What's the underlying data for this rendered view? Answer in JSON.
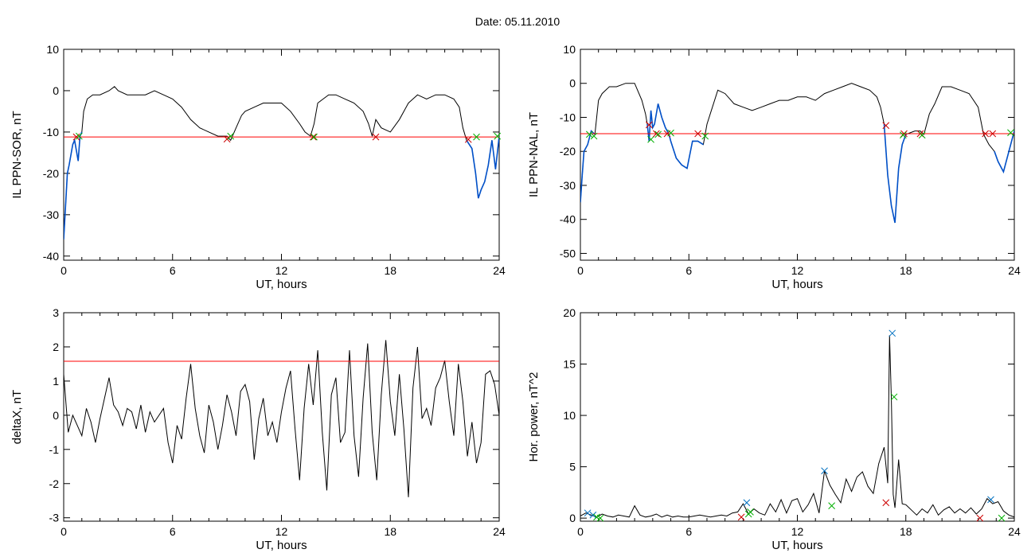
{
  "figure": {
    "title": "Date:  05.11.2010"
  },
  "colors": {
    "line": "#000000",
    "threshold": "#ff0000",
    "highlight": "#0050c8",
    "marker_red": "#cc0000",
    "marker_green": "#00b000",
    "marker_blue": "#0070c0"
  },
  "chart_data": [
    {
      "id": "sor",
      "type": "line",
      "xlabel": "UT, hours",
      "ylabel": "IL PPN-SOR, nT",
      "xlim": [
        0,
        24
      ],
      "ylim": [
        -41,
        10
      ],
      "xticks": [
        0,
        6,
        12,
        18,
        24
      ],
      "yticks": [
        -40,
        -30,
        -20,
        -10,
        0,
        10
      ],
      "threshold": -11.2,
      "series": {
        "x": [
          0,
          0.1,
          0.2,
          0.3,
          0.5,
          0.6,
          0.8,
          0.9,
          1.0,
          1.1,
          1.3,
          1.6,
          2.0,
          2.5,
          2.8,
          3.0,
          3.5,
          4.0,
          4.5,
          5.0,
          5.5,
          6.0,
          6.5,
          7.0,
          7.5,
          8.0,
          8.5,
          9.0,
          9.2,
          9.5,
          9.8,
          10.0,
          10.5,
          11.0,
          11.5,
          12.0,
          12.5,
          13.0,
          13.3,
          13.6,
          13.8,
          14.0,
          14.3,
          14.6,
          15.0,
          15.5,
          16.0,
          16.5,
          16.8,
          17.0,
          17.2,
          17.5,
          18.0,
          18.5,
          19.0,
          19.5,
          20.0,
          20.5,
          21.0,
          21.5,
          21.8,
          22.0,
          22.2,
          22.5,
          22.7,
          22.85,
          23.0,
          23.2,
          23.4,
          23.6,
          23.8,
          24.0
        ],
        "y": [
          -36,
          -28,
          -20,
          -18,
          -13,
          -12,
          -17,
          -11,
          -10,
          -5,
          -2,
          -1,
          -1,
          0,
          1,
          0,
          -1,
          -1,
          -1,
          0,
          -1,
          -2,
          -4,
          -7,
          -9,
          -10,
          -11,
          -11,
          -12,
          -9,
          -6,
          -5,
          -4,
          -3,
          -3,
          -3,
          -5,
          -8,
          -10,
          -11,
          -8,
          -3,
          -2,
          -1,
          -1,
          -2,
          -3,
          -5,
          -8,
          -11,
          -7,
          -9,
          -10,
          -7,
          -3,
          -1,
          -2,
          -1,
          -1,
          -2,
          -4,
          -9,
          -12,
          -14,
          -20,
          -26,
          -24,
          -22,
          -18,
          -12,
          -19,
          -11
        ],
        "highlight_ranges": [
          [
            0,
            1.0
          ],
          [
            22.2,
            24
          ]
        ]
      },
      "markers": [
        {
          "x": 0.7,
          "y": -11.2,
          "color": "red"
        },
        {
          "x": 0.85,
          "y": -11,
          "color": "green"
        },
        {
          "x": 9.0,
          "y": -11.7,
          "color": "red"
        },
        {
          "x": 9.2,
          "y": -11,
          "color": "green"
        },
        {
          "x": 13.75,
          "y": -11.2,
          "color": "red"
        },
        {
          "x": 13.8,
          "y": -11.2,
          "color": "green"
        },
        {
          "x": 17.2,
          "y": -11.2,
          "color": "red"
        },
        {
          "x": 22.3,
          "y": -11.8,
          "color": "red"
        },
        {
          "x": 22.75,
          "y": -11.2,
          "color": "green"
        },
        {
          "x": 23.9,
          "y": -11,
          "color": "green"
        }
      ]
    },
    {
      "id": "nal",
      "type": "line",
      "xlabel": "UT, hours",
      "ylabel": "IL PPN-NAL, nT",
      "xlim": [
        0,
        24
      ],
      "ylim": [
        -52,
        10
      ],
      "xticks": [
        0,
        6,
        12,
        18,
        24
      ],
      "yticks": [
        -50,
        -40,
        -30,
        -20,
        -10,
        0,
        10
      ],
      "threshold": -14.8,
      "series": {
        "x": [
          0,
          0.1,
          0.2,
          0.4,
          0.6,
          0.8,
          1.0,
          1.2,
          1.6,
          2.0,
          2.5,
          3.0,
          3.4,
          3.6,
          3.7,
          3.8,
          3.9,
          4.0,
          4.1,
          4.3,
          4.5,
          4.7,
          4.9,
          5.0,
          5.3,
          5.6,
          5.9,
          6.2,
          6.5,
          6.8,
          7.0,
          7.3,
          7.6,
          8.0,
          8.5,
          9.0,
          9.5,
          10.0,
          10.5,
          11.0,
          11.5,
          12.0,
          12.5,
          13.0,
          13.5,
          14.0,
          14.5,
          15.0,
          15.5,
          16.0,
          16.4,
          16.6,
          16.8,
          17.0,
          17.2,
          17.4,
          17.6,
          17.8,
          18.0,
          18.5,
          18.8,
          19.0,
          19.3,
          19.6,
          20.0,
          20.5,
          21.0,
          21.5,
          22.0,
          22.3,
          22.6,
          22.9,
          23.1,
          23.4,
          23.7,
          24.0
        ],
        "y": [
          -35,
          -27,
          -20,
          -18,
          -14,
          -15,
          -5,
          -3,
          -1,
          -1,
          0,
          0,
          -5,
          -9,
          -12,
          -17,
          -8,
          -13,
          -12,
          -6,
          -10,
          -13,
          -15,
          -17,
          -22,
          -24,
          -25,
          -17,
          -17,
          -18,
          -12,
          -7,
          -2,
          -3,
          -6,
          -7,
          -8,
          -7,
          -6,
          -5,
          -5,
          -4,
          -4,
          -5,
          -3,
          -2,
          -1,
          0,
          -1,
          -2,
          -4,
          -7,
          -12,
          -27,
          -36,
          -41,
          -25,
          -18,
          -15,
          -14,
          -14,
          -15,
          -9,
          -6,
          -1,
          -1,
          -2,
          -3,
          -7,
          -15,
          -18,
          -20,
          -23,
          -26,
          -20,
          -14
        ],
        "highlight_ranges": [
          [
            0,
            0.8
          ],
          [
            3.7,
            6.9
          ],
          [
            16.8,
            18.0
          ],
          [
            22.9,
            24
          ]
        ]
      },
      "markers": [
        {
          "x": 0.5,
          "y": -15,
          "color": "green"
        },
        {
          "x": 0.75,
          "y": -15.5,
          "color": "green"
        },
        {
          "x": 3.8,
          "y": -12.2,
          "color": "red"
        },
        {
          "x": 3.9,
          "y": -16.5,
          "color": "green"
        },
        {
          "x": 4.2,
          "y": -14.8,
          "color": "red"
        },
        {
          "x": 4.3,
          "y": -15,
          "color": "green"
        },
        {
          "x": 4.8,
          "y": -14.8,
          "color": "red"
        },
        {
          "x": 5.0,
          "y": -14.6,
          "color": "green"
        },
        {
          "x": 6.5,
          "y": -14.8,
          "color": "red"
        },
        {
          "x": 6.9,
          "y": -15.5,
          "color": "green"
        },
        {
          "x": 16.9,
          "y": -12.4,
          "color": "red"
        },
        {
          "x": 17.9,
          "y": -14.8,
          "color": "red"
        },
        {
          "x": 17.85,
          "y": -15.2,
          "color": "green"
        },
        {
          "x": 18.8,
          "y": -14.8,
          "color": "red"
        },
        {
          "x": 18.9,
          "y": -15.2,
          "color": "green"
        },
        {
          "x": 22.4,
          "y": -14.8,
          "color": "red"
        },
        {
          "x": 22.8,
          "y": -14.8,
          "color": "red"
        },
        {
          "x": 23.8,
          "y": -14.5,
          "color": "green"
        }
      ]
    },
    {
      "id": "deltax",
      "type": "line",
      "xlabel": "UT, hours",
      "ylabel": "deltaX, nT",
      "xlim": [
        0,
        24
      ],
      "ylim": [
        -3.1,
        3
      ],
      "xticks": [
        0,
        6,
        12,
        18,
        24
      ],
      "yticks": [
        -3,
        -2,
        -1,
        0,
        1,
        2,
        3
      ],
      "threshold": 1.58,
      "series": {
        "x": [
          0,
          0.25,
          0.5,
          0.75,
          1,
          1.25,
          1.5,
          1.75,
          2,
          2.25,
          2.5,
          2.75,
          3,
          3.25,
          3.5,
          3.75,
          4,
          4.25,
          4.5,
          4.75,
          5,
          5.25,
          5.5,
          5.75,
          6,
          6.25,
          6.5,
          6.75,
          7,
          7.25,
          7.5,
          7.75,
          8,
          8.25,
          8.5,
          8.75,
          9,
          9.25,
          9.5,
          9.75,
          10,
          10.25,
          10.5,
          10.75,
          11,
          11.25,
          11.5,
          11.75,
          12,
          12.25,
          12.5,
          12.75,
          13,
          13.25,
          13.5,
          13.75,
          14,
          14.25,
          14.5,
          14.75,
          15,
          15.25,
          15.5,
          15.75,
          16,
          16.25,
          16.5,
          16.75,
          17,
          17.25,
          17.5,
          17.75,
          18,
          18.25,
          18.5,
          18.75,
          19,
          19.25,
          19.5,
          19.75,
          20,
          20.25,
          20.5,
          20.75,
          21,
          21.25,
          21.5,
          21.75,
          22,
          22.25,
          22.5,
          22.75,
          23,
          23.25,
          23.5,
          23.75,
          24
        ],
        "y": [
          1.2,
          -0.5,
          0,
          -0.3,
          -0.6,
          0.2,
          -0.2,
          -0.8,
          -0.1,
          0.5,
          1.1,
          0.3,
          0.1,
          -0.3,
          0.2,
          0.1,
          -0.4,
          0.3,
          -0.5,
          0.1,
          -0.2,
          0,
          0.2,
          -0.8,
          -1.4,
          -0.3,
          -0.7,
          0.5,
          1.5,
          0.2,
          -0.6,
          -1.1,
          0.3,
          -0.2,
          -1.0,
          -0.3,
          0.6,
          0.1,
          -0.6,
          0.7,
          0.9,
          0.4,
          -1.3,
          -0.1,
          0.5,
          -0.6,
          -0.2,
          -0.8,
          0.1,
          0.8,
          1.3,
          -0.4,
          -1.9,
          0.2,
          1.5,
          0.3,
          1.9,
          -0.5,
          -2.2,
          0.6,
          1.1,
          -0.8,
          -0.5,
          1.9,
          -0.6,
          -1.8,
          0.5,
          2.1,
          -0.5,
          -1.9,
          0.6,
          2.2,
          0.4,
          -0.6,
          1.2,
          -0.4,
          -2.4,
          0.8,
          2.0,
          -0.1,
          0.2,
          -0.3,
          0.8,
          1.1,
          1.6,
          0.4,
          -0.6,
          1.5,
          0.4,
          -1.2,
          -0.2,
          -1.4,
          -0.8,
          1.2,
          1.3,
          0.9,
          0
        ]
      },
      "markers": []
    },
    {
      "id": "hor",
      "type": "line",
      "xlabel": "UT, hours",
      "ylabel": "Hor. power, nT^2",
      "xlim": [
        0,
        24
      ],
      "ylim": [
        -0.3,
        20
      ],
      "xticks": [
        0,
        6,
        12,
        18,
        24
      ],
      "yticks": [
        0,
        5,
        10,
        15,
        20
      ],
      "threshold": null,
      "series": {
        "x": [
          0,
          0.3,
          0.6,
          0.9,
          1.2,
          1.5,
          1.8,
          2.1,
          2.4,
          2.7,
          3.0,
          3.3,
          3.6,
          3.9,
          4.2,
          4.5,
          4.8,
          5.1,
          5.4,
          5.7,
          6.0,
          6.3,
          6.6,
          6.9,
          7.2,
          7.5,
          7.8,
          8.1,
          8.4,
          8.7,
          9.0,
          9.3,
          9.6,
          9.9,
          10.2,
          10.5,
          10.8,
          11.1,
          11.4,
          11.7,
          12.0,
          12.3,
          12.6,
          12.9,
          13.2,
          13.5,
          13.8,
          14.1,
          14.4,
          14.7,
          15.0,
          15.3,
          15.6,
          15.9,
          16.2,
          16.5,
          16.8,
          17.0,
          17.1,
          17.2,
          17.3,
          17.4,
          17.6,
          17.8,
          18.0,
          18.3,
          18.6,
          18.9,
          19.2,
          19.5,
          19.8,
          20.1,
          20.4,
          20.7,
          21.0,
          21.3,
          21.6,
          21.9,
          22.2,
          22.5,
          22.8,
          23.1,
          23.4,
          23.7,
          24.0
        ],
        "y": [
          0.2,
          0.5,
          0.3,
          0.1,
          0.4,
          0.2,
          0.1,
          0.3,
          0.2,
          0.1,
          1.2,
          0.3,
          0.1,
          0.2,
          0.4,
          0.1,
          0.3,
          0.1,
          0.2,
          0.1,
          0.1,
          0.2,
          0.3,
          0.2,
          0.1,
          0.2,
          0.3,
          0.2,
          0.5,
          0.6,
          1.4,
          0.4,
          0.9,
          0.5,
          0.3,
          1.4,
          0.6,
          1.8,
          0.5,
          1.7,
          1.9,
          0.6,
          1.3,
          2.4,
          0.5,
          4.6,
          3.2,
          2.3,
          1.5,
          3.8,
          2.6,
          4.0,
          4.5,
          3.1,
          2.4,
          5.3,
          6.9,
          3.4,
          17.8,
          11.5,
          2.3,
          1.0,
          5.7,
          1.4,
          1.3,
          0.8,
          0.3,
          0.9,
          0.5,
          1.3,
          0.3,
          0.8,
          1.1,
          0.5,
          0.9,
          0.5,
          1.0,
          0.4,
          0.9,
          1.9,
          1.4,
          1.6,
          0.7,
          0.3,
          0.1
        ]
      },
      "markers": [
        {
          "x": 0.4,
          "y": 0.5,
          "color": "blue"
        },
        {
          "x": 0.7,
          "y": 0.3,
          "color": "blue"
        },
        {
          "x": 0.9,
          "y": 0.1,
          "color": "green"
        },
        {
          "x": 1.1,
          "y": 0,
          "color": "green"
        },
        {
          "x": 8.9,
          "y": 0.1,
          "color": "red"
        },
        {
          "x": 9.2,
          "y": 1.5,
          "color": "blue"
        },
        {
          "x": 9.3,
          "y": 0.4,
          "color": "green"
        },
        {
          "x": 9.4,
          "y": 0.6,
          "color": "green"
        },
        {
          "x": 13.5,
          "y": 4.6,
          "color": "blue"
        },
        {
          "x": 13.9,
          "y": 1.2,
          "color": "green"
        },
        {
          "x": 16.9,
          "y": 1.5,
          "color": "red"
        },
        {
          "x": 17.25,
          "y": 18.0,
          "color": "blue"
        },
        {
          "x": 17.35,
          "y": 11.8,
          "color": "green"
        },
        {
          "x": 22.1,
          "y": 0,
          "color": "red"
        },
        {
          "x": 22.7,
          "y": 1.8,
          "color": "blue"
        },
        {
          "x": 23.3,
          "y": 0,
          "color": "green"
        }
      ]
    }
  ]
}
